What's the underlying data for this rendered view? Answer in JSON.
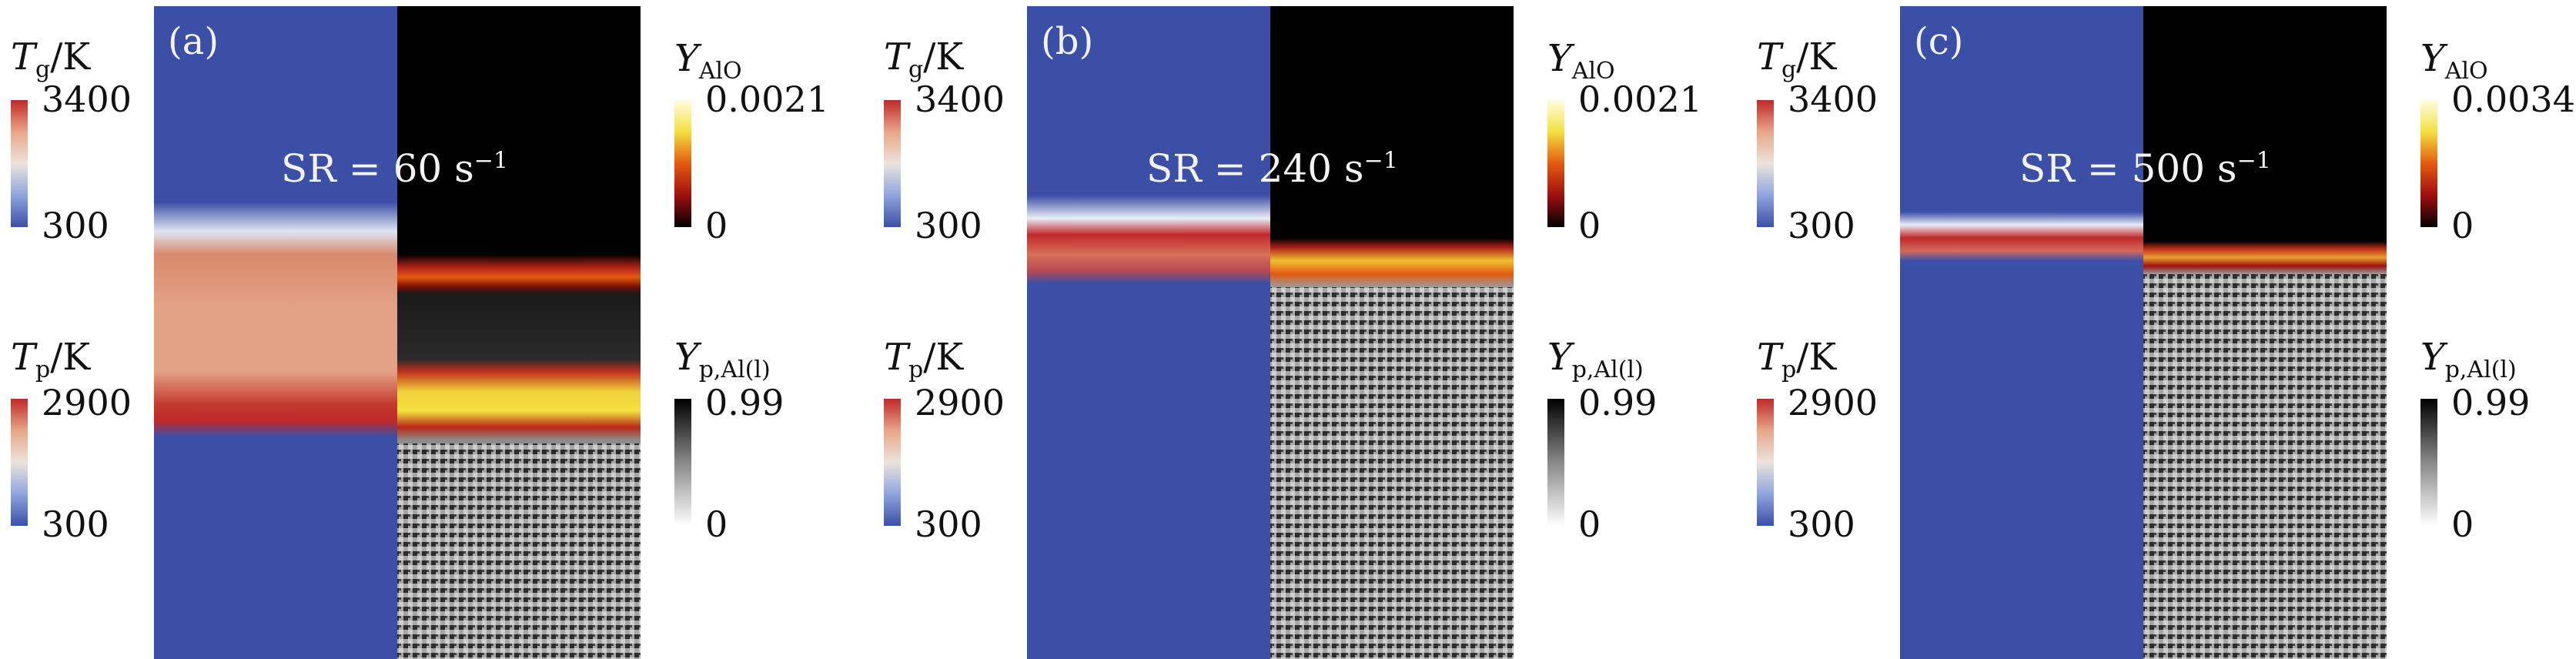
{
  "panels": [
    {
      "letter": "(a)",
      "sr_text": "SR = 60 s",
      "sr_exp": "−1",
      "tg": {
        "sym": "T",
        "sub": "g",
        "unit": "/K",
        "max": "3400",
        "min": "300"
      },
      "tp": {
        "sym": "T",
        "sub": "p",
        "unit": "/K",
        "max": "2900",
        "min": "300"
      },
      "yalo": {
        "sym": "Y",
        "sub": "AlO",
        "max": "0.0021",
        "min": "0"
      },
      "yp": {
        "sym": "Y",
        "sub": "p,Al(l)",
        "max": "0.99",
        "min": "0"
      }
    },
    {
      "letter": "(b)",
      "sr_text": "SR = 240 s",
      "sr_exp": "−1",
      "tg": {
        "sym": "T",
        "sub": "g",
        "unit": "/K",
        "max": "3400",
        "min": "300"
      },
      "tp": {
        "sym": "T",
        "sub": "p",
        "unit": "/K",
        "max": "2900",
        "min": "300"
      },
      "yalo": {
        "sym": "Y",
        "sub": "AlO",
        "max": "0.0021",
        "min": "0"
      },
      "yp": {
        "sym": "Y",
        "sub": "p,Al(l)",
        "max": "0.99",
        "min": "0"
      }
    },
    {
      "letter": "(c)",
      "sr_text": "SR = 500 s",
      "sr_exp": "−1",
      "tg": {
        "sym": "T",
        "sub": "g",
        "unit": "/K",
        "max": "3400",
        "min": "300"
      },
      "tp": {
        "sym": "T",
        "sub": "p",
        "unit": "/K",
        "max": "2900",
        "min": "300"
      },
      "yalo": {
        "sym": "Y",
        "sub": "AlO",
        "max": "0.0034",
        "min": "0"
      },
      "yp": {
        "sym": "Y",
        "sub": "p,Al(l)",
        "max": "0.99",
        "min": "0"
      }
    }
  ],
  "colors": {
    "cold_blue": "#3b4fa6",
    "hot_red": "#c0282a",
    "warm_salmon": "#e8a688",
    "flame_yellow": "#f5e040",
    "background_black": "#000000"
  }
}
